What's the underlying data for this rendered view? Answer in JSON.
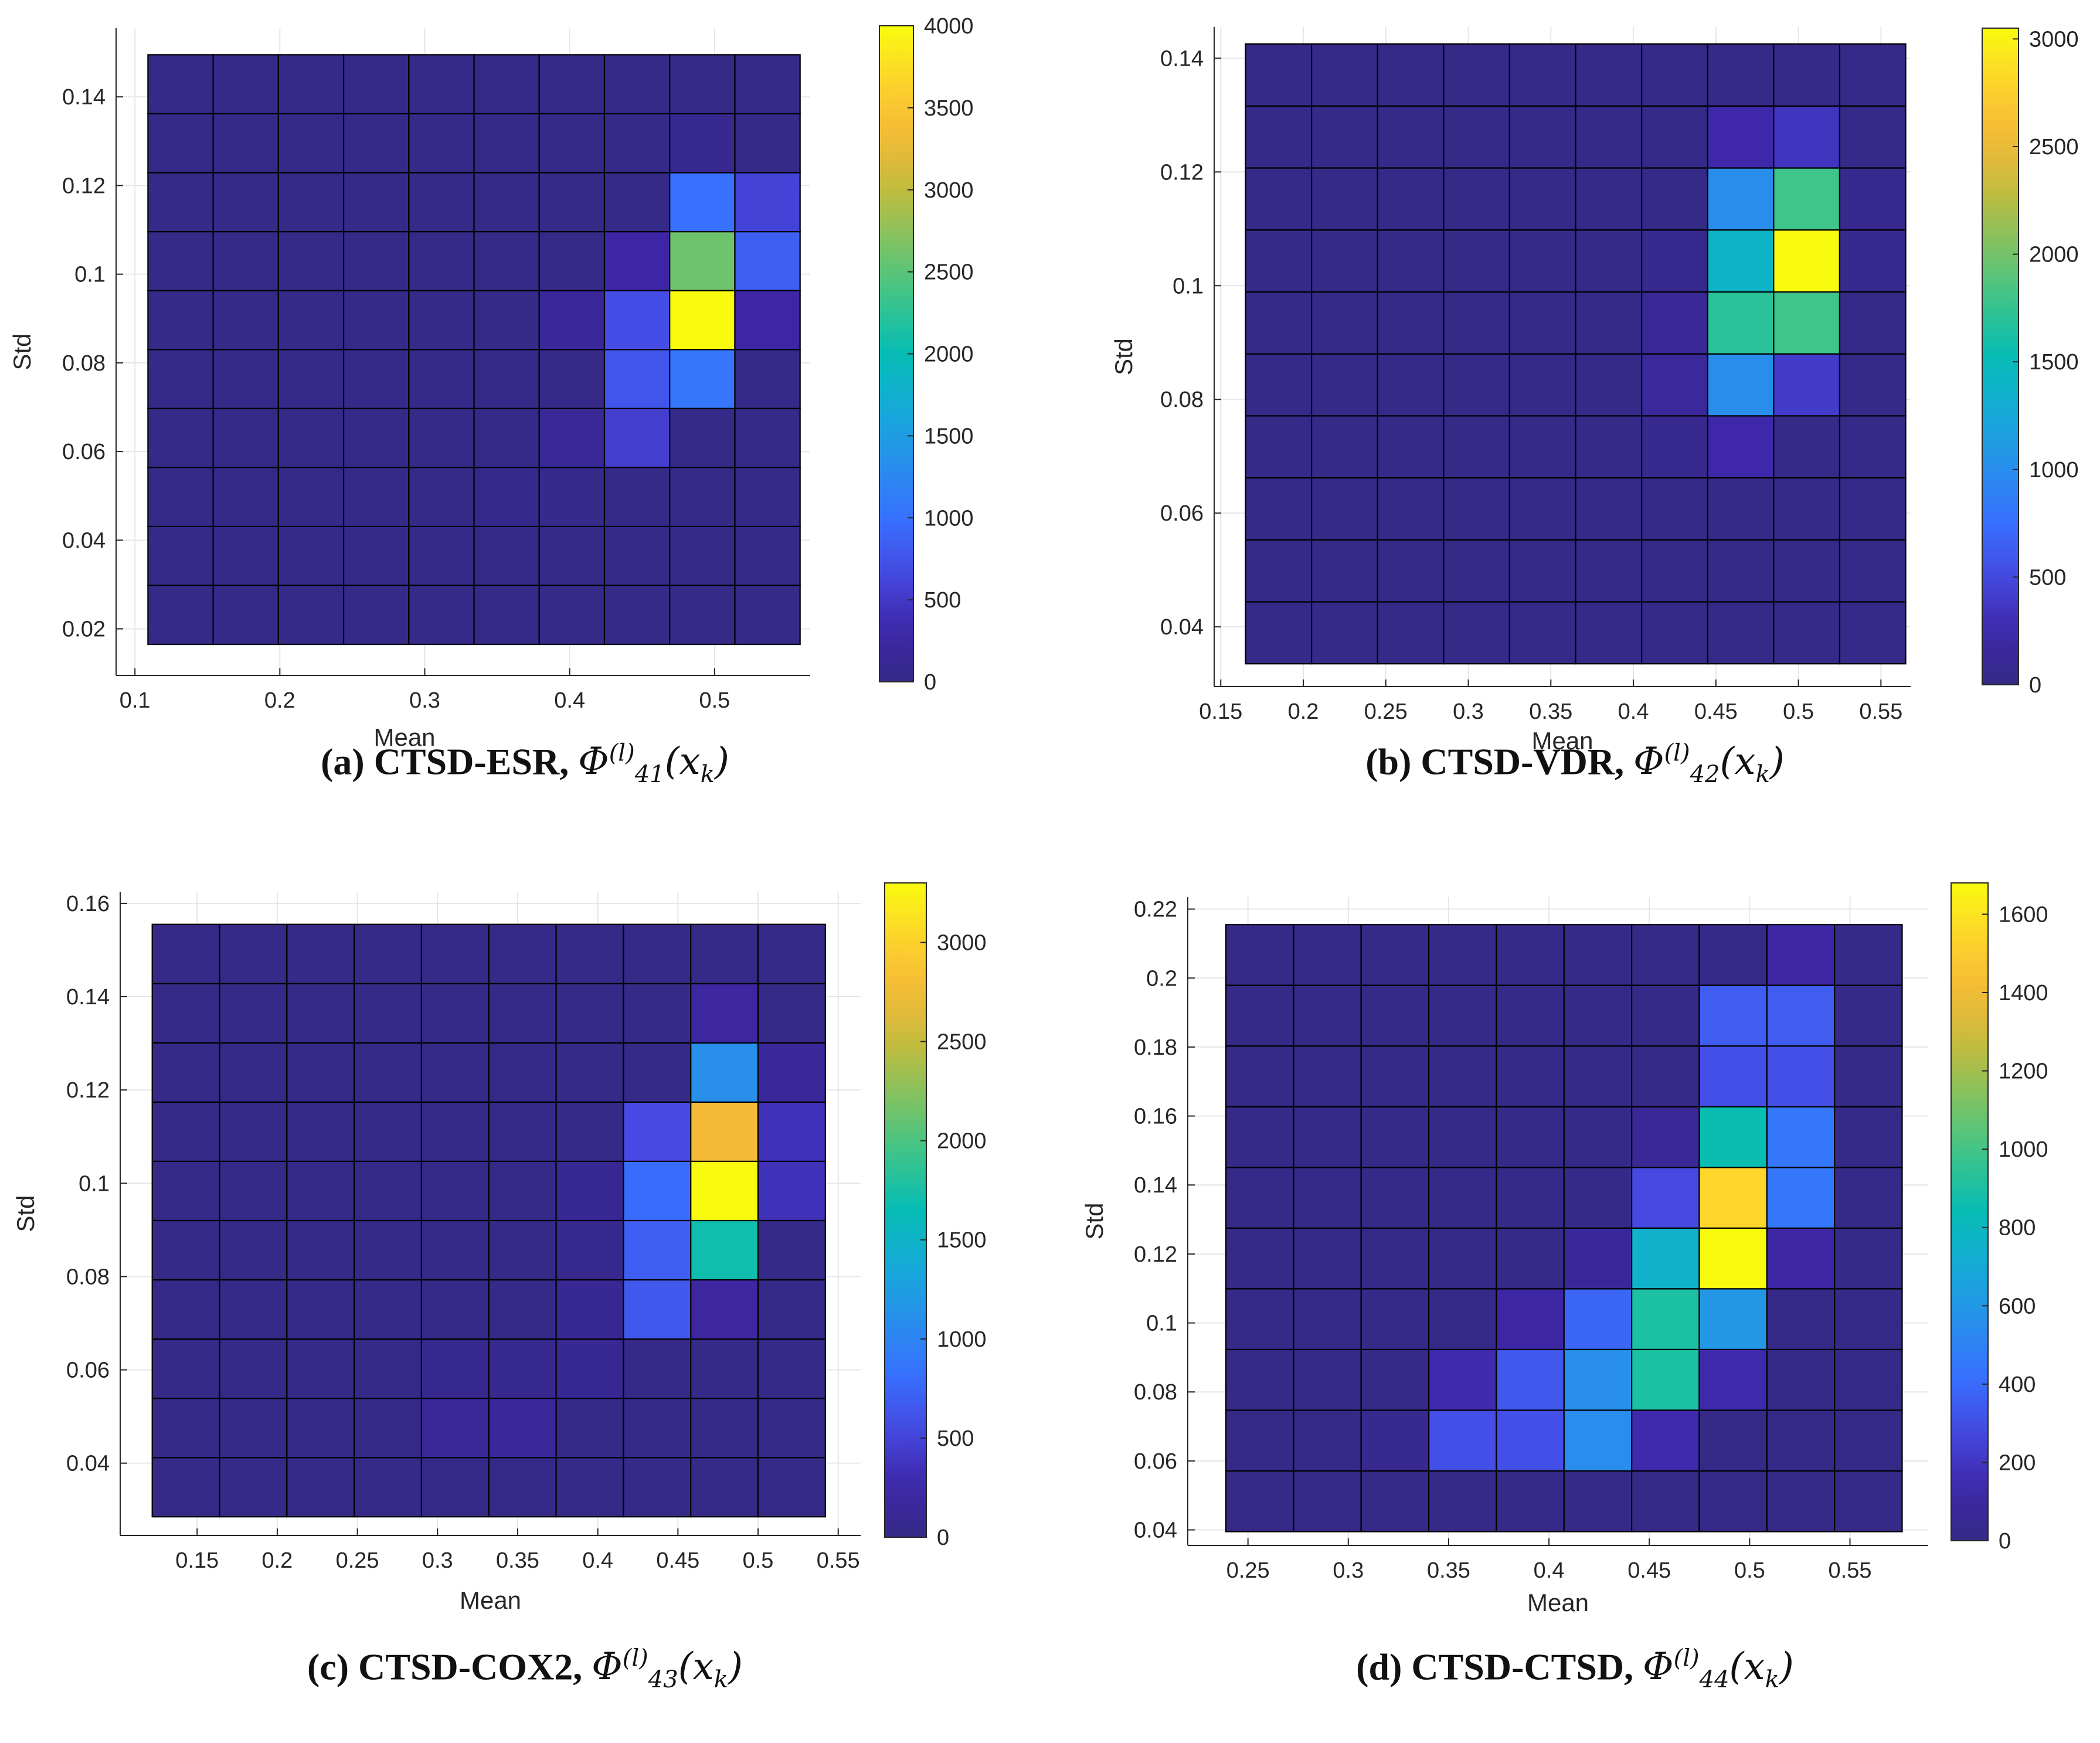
{
  "chart_data": [
    {
      "type": "heatmap",
      "caption": {
        "text": "(a) CTSD-ESR, ",
        "symbol": "Φ",
        "sup": "(l)",
        "sub": "41",
        "arg": "(x",
        "arg_sub": "k",
        "arg_close": ")"
      },
      "xlabel": "Mean",
      "ylabel": "Std",
      "xlim": [
        0.087,
        0.566
      ],
      "ylim": [
        0.0095,
        0.1555
      ],
      "x_ticks": [
        0.1,
        0.2,
        0.3,
        0.4,
        0.5
      ],
      "x_tick_labels": [
        "0.1",
        "0.2",
        "0.3",
        "0.4",
        "0.5"
      ],
      "y_ticks": [
        0.02,
        0.04,
        0.06,
        0.08,
        0.1,
        0.12,
        0.14
      ],
      "y_tick_labels": [
        "0.02",
        "0.04",
        "0.06",
        "0.08",
        "0.1",
        "0.12",
        "0.14"
      ],
      "x_edges": [
        0.109,
        0.154,
        0.199,
        0.244,
        0.289,
        0.334,
        0.379,
        0.424,
        0.469,
        0.514,
        0.559
      ],
      "y_edges": [
        0.0165,
        0.0298,
        0.0431,
        0.0564,
        0.0697,
        0.083,
        0.0963,
        0.1096,
        0.1229,
        0.1362,
        0.1495
      ],
      "colorbar": {
        "min": 0,
        "max": 4000,
        "ticks": [
          0,
          500,
          1000,
          1500,
          2000,
          2500,
          3000,
          3500,
          4000
        ],
        "tick_labels": [
          "0",
          "500",
          "1000",
          "1500",
          "2000",
          "2500",
          "3000",
          "3500",
          "4000"
        ]
      },
      "counts": [
        [
          0,
          0,
          0,
          0,
          0,
          0,
          0,
          0,
          0,
          0
        ],
        [
          0,
          0,
          0,
          0,
          0,
          0,
          0,
          0,
          0,
          0
        ],
        [
          0,
          0,
          0,
          0,
          0,
          50,
          30,
          0,
          0,
          0
        ],
        [
          0,
          0,
          0,
          0,
          0,
          0,
          150,
          550,
          0,
          0
        ],
        [
          0,
          0,
          0,
          0,
          0,
          0,
          0,
          780,
          1050,
          0
        ],
        [
          0,
          0,
          0,
          0,
          0,
          0,
          180,
          700,
          4000,
          300
        ],
        [
          0,
          0,
          0,
          0,
          0,
          0,
          0,
          300,
          2600,
          850
        ],
        [
          0,
          0,
          0,
          0,
          0,
          0,
          0,
          0,
          1000,
          600
        ],
        [
          0,
          0,
          0,
          0,
          0,
          0,
          0,
          0,
          80,
          0
        ],
        [
          0,
          0,
          0,
          0,
          0,
          0,
          0,
          0,
          0,
          0
        ]
      ]
    },
    {
      "type": "heatmap",
      "caption": {
        "text": "(b) CTSD-VDR, ",
        "symbol": "Φ",
        "sup": "(l)",
        "sub": "42",
        "arg": "(x",
        "arg_sub": "k",
        "arg_close": ")"
      },
      "xlabel": "Mean",
      "ylabel": "Std",
      "xlim": [
        0.146,
        0.568
      ],
      "ylim": [
        0.0295,
        0.1455
      ],
      "x_ticks": [
        0.15,
        0.2,
        0.25,
        0.3,
        0.35,
        0.4,
        0.45,
        0.5,
        0.55
      ],
      "x_tick_labels": [
        "0.15",
        "0.2",
        "0.25",
        "0.3",
        "0.35",
        "0.4",
        "0.45",
        "0.5",
        "0.55"
      ],
      "y_ticks": [
        0.04,
        0.06,
        0.08,
        0.1,
        0.12,
        0.14
      ],
      "y_tick_labels": [
        "0.04",
        "0.06",
        "0.08",
        "0.1",
        "0.12",
        "0.14"
      ],
      "x_edges": [
        0.165,
        0.205,
        0.245,
        0.285,
        0.325,
        0.365,
        0.405,
        0.445,
        0.485,
        0.525,
        0.565
      ],
      "y_edges": [
        0.0335,
        0.0444,
        0.0553,
        0.0662,
        0.0771,
        0.088,
        0.0989,
        0.1098,
        0.1207,
        0.1316,
        0.1425
      ],
      "colorbar": {
        "min": 0,
        "max": 3050,
        "ticks": [
          0,
          500,
          1000,
          1500,
          2000,
          2500,
          3000
        ],
        "tick_labels": [
          "0",
          "500",
          "1000",
          "1500",
          "2000",
          "2500",
          "3000"
        ]
      },
      "counts": [
        [
          0,
          0,
          0,
          0,
          0,
          0,
          0,
          0,
          0,
          0
        ],
        [
          0,
          0,
          0,
          0,
          0,
          0,
          0,
          0,
          0,
          0
        ],
        [
          0,
          0,
          0,
          0,
          0,
          0,
          0,
          0,
          0,
          0
        ],
        [
          0,
          0,
          0,
          0,
          0,
          0,
          50,
          250,
          0,
          0
        ],
        [
          0,
          0,
          0,
          0,
          0,
          0,
          150,
          1000,
          400,
          0
        ],
        [
          0,
          0,
          0,
          0,
          0,
          0,
          100,
          1700,
          1800,
          0
        ],
        [
          0,
          0,
          0,
          0,
          0,
          0,
          50,
          1400,
          3050,
          50
        ],
        [
          0,
          0,
          0,
          0,
          0,
          0,
          0,
          1000,
          1800,
          50
        ],
        [
          0,
          0,
          0,
          0,
          0,
          0,
          0,
          250,
          350,
          0
        ],
        [
          0,
          0,
          0,
          0,
          0,
          0,
          0,
          0,
          0,
          0
        ]
      ]
    },
    {
      "type": "heatmap",
      "caption": {
        "text": "(c) CTSD-COX2, ",
        "symbol": "Φ",
        "sup": "(l)",
        "sub": "43",
        "arg": "(x",
        "arg_sub": "k",
        "arg_close": ")"
      },
      "xlabel": "Mean",
      "ylabel": "Std",
      "xlim": [
        0.102,
        0.564
      ],
      "ylim": [
        0.0245,
        0.1625
      ],
      "x_ticks": [
        0.15,
        0.2,
        0.25,
        0.3,
        0.35,
        0.4,
        0.45,
        0.5,
        0.55
      ],
      "x_tick_labels": [
        "0.15",
        "0.2",
        "0.25",
        "0.3",
        "0.35",
        "0.4",
        "0.45",
        "0.5",
        "0.55"
      ],
      "y_ticks": [
        0.04,
        0.06,
        0.08,
        0.1,
        0.12,
        0.14,
        0.16
      ],
      "y_tick_labels": [
        "0.04",
        "0.06",
        "0.08",
        "0.1",
        "0.12",
        "0.14",
        "0.16"
      ],
      "x_edges": [
        0.122,
        0.164,
        0.206,
        0.248,
        0.29,
        0.332,
        0.374,
        0.416,
        0.458,
        0.5,
        0.542
      ],
      "y_edges": [
        0.0285,
        0.0412,
        0.0539,
        0.0666,
        0.0793,
        0.092,
        0.1047,
        0.1174,
        0.1301,
        0.1428,
        0.1555
      ],
      "colorbar": {
        "min": 0,
        "max": 3300,
        "ticks": [
          0,
          500,
          1000,
          1500,
          2000,
          2500,
          3000
        ],
        "tick_labels": [
          "0",
          "500",
          "1000",
          "1500",
          "2000",
          "2500",
          "3000"
        ]
      },
      "counts": [
        [
          0,
          0,
          0,
          0,
          0,
          0,
          0,
          0,
          0,
          0
        ],
        [
          0,
          0,
          0,
          0,
          120,
          150,
          0,
          0,
          0,
          0
        ],
        [
          0,
          0,
          0,
          0,
          50,
          50,
          100,
          0,
          0,
          0
        ],
        [
          0,
          0,
          0,
          0,
          0,
          0,
          100,
          650,
          200,
          0
        ],
        [
          0,
          0,
          0,
          0,
          0,
          0,
          50,
          700,
          1700,
          0
        ],
        [
          0,
          0,
          0,
          0,
          0,
          0,
          100,
          800,
          3300,
          350
        ],
        [
          0,
          0,
          0,
          0,
          0,
          0,
          0,
          550,
          2750,
          350
        ],
        [
          0,
          0,
          0,
          0,
          0,
          0,
          0,
          0,
          1100,
          150
        ],
        [
          0,
          0,
          0,
          0,
          0,
          0,
          0,
          0,
          200,
          0
        ],
        [
          0,
          0,
          0,
          0,
          0,
          0,
          0,
          0,
          0,
          0
        ]
      ]
    },
    {
      "type": "heatmap",
      "caption": {
        "text": "(d) CTSD-CTSD, ",
        "symbol": "Φ",
        "sup": "(l)",
        "sub": "44",
        "arg": "(x",
        "arg_sub": "k",
        "arg_close": ")"
      },
      "xlabel": "Mean",
      "ylabel": "Std",
      "xlim": [
        0.22,
        0.589
      ],
      "ylim": [
        0.0355,
        0.2235
      ],
      "x_ticks": [
        0.25,
        0.3,
        0.35,
        0.4,
        0.45,
        0.5,
        0.55
      ],
      "x_tick_labels": [
        "0.25",
        "0.3",
        "0.35",
        "0.4",
        "0.45",
        "0.5",
        "0.55"
      ],
      "y_ticks": [
        0.04,
        0.06,
        0.08,
        0.1,
        0.12,
        0.14,
        0.16,
        0.18,
        0.2,
        0.22
      ],
      "y_tick_labels": [
        "0.04",
        "0.06",
        "0.08",
        "0.1",
        "0.12",
        "0.14",
        "0.16",
        "0.18",
        "0.2",
        "0.22"
      ],
      "x_edges": [
        0.239,
        0.2727,
        0.3064,
        0.3401,
        0.3738,
        0.4075,
        0.4412,
        0.4749,
        0.5086,
        0.5423,
        0.576
      ],
      "y_edges": [
        0.0395,
        0.0571,
        0.0747,
        0.0923,
        0.1099,
        0.1275,
        0.1451,
        0.1627,
        0.1803,
        0.1979,
        0.2155
      ],
      "colorbar": {
        "min": 0,
        "max": 1680,
        "ticks": [
          0,
          200,
          400,
          600,
          800,
          1000,
          1200,
          1400,
          1600
        ],
        "tick_labels": [
          "0",
          "200",
          "400",
          "600",
          "800",
          "1000",
          "1200",
          "1400",
          "1600"
        ]
      },
      "counts": [
        [
          0,
          0,
          0,
          0,
          0,
          0,
          0,
          0,
          0,
          0
        ],
        [
          0,
          0,
          40,
          300,
          300,
          550,
          150,
          0,
          0,
          0
        ],
        [
          0,
          0,
          0,
          150,
          330,
          560,
          900,
          150,
          0,
          0
        ],
        [
          0,
          0,
          0,
          0,
          120,
          380,
          900,
          600,
          0,
          0
        ],
        [
          0,
          0,
          0,
          0,
          0,
          80,
          750,
          1680,
          120,
          0
        ],
        [
          0,
          0,
          0,
          0,
          0,
          0,
          280,
          1550,
          450,
          0
        ],
        [
          0,
          0,
          0,
          0,
          0,
          0,
          60,
          850,
          450,
          0
        ],
        [
          0,
          0,
          0,
          0,
          0,
          0,
          0,
          300,
          300,
          0
        ],
        [
          0,
          0,
          0,
          0,
          0,
          0,
          0,
          350,
          350,
          0
        ],
        [
          0,
          0,
          0,
          0,
          0,
          0,
          0,
          0,
          120,
          0
        ]
      ]
    }
  ]
}
